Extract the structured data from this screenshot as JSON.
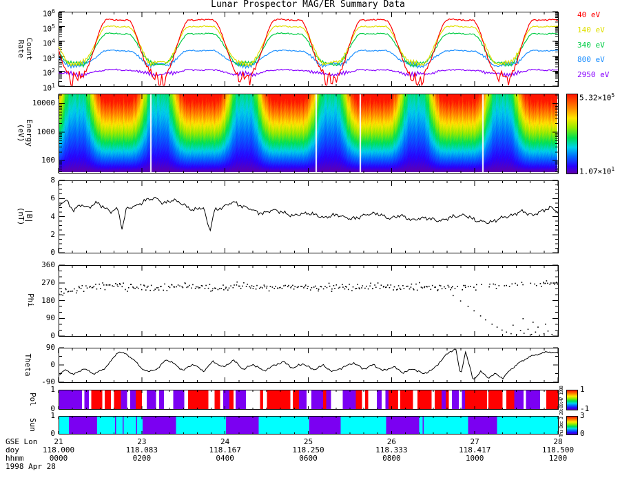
{
  "title": "Lunar Prospector MAG/ER Summary Data",
  "timestamp_side": "Thu Dec 3 20:09:47 1998",
  "x_axis": {
    "row_labels": [
      "GSE Lon",
      "doy",
      "hhmm"
    ],
    "date_label": "1998 Apr 28",
    "gse_lon": [
      "21",
      "23",
      "24",
      "25",
      "26",
      "27",
      "28"
    ],
    "doy": [
      "118.000",
      "118.083",
      "118.167",
      "118.250",
      "118.333",
      "118.417",
      "118.500"
    ],
    "hhmm": [
      "0000",
      "0200",
      "0400",
      "0600",
      "0800",
      "1000",
      "1200"
    ]
  },
  "orbit": {
    "valley_centers": [
      0.035,
      0.2,
      0.372,
      0.545,
      0.717,
      0.89
    ],
    "valley_halfwidth": 0.012,
    "transition": 0.05
  },
  "chart_data": {
    "count_rate": {
      "type": "line",
      "yscale": "log",
      "ylim_log": [
        1,
        6
      ],
      "ylabel_lines": [
        "Count",
        "Rate"
      ],
      "ytick_exponents": [
        "1",
        "2",
        "3",
        "4",
        "5",
        "6"
      ],
      "legend": [
        {
          "label": "40 eV",
          "color": "#ff0000"
        },
        {
          "label": "140 eV",
          "color": "#e0e000"
        },
        {
          "label": "340 eV",
          "color": "#00cc44"
        },
        {
          "label": "800 eV",
          "color": "#1e90ff"
        },
        {
          "label": "2950 eV",
          "color": "#8800ff"
        }
      ],
      "series": [
        {
          "label": "2950 eV",
          "color": "#8800ff",
          "plateau_log": 2.08,
          "valley_log": 1.8,
          "noise": 0.05,
          "spiky": false
        },
        {
          "label": "800 eV",
          "color": "#1e90ff",
          "plateau_log": 3.38,
          "valley_log": 2.42,
          "noise": 0.045,
          "spiky": false
        },
        {
          "label": "340 eV",
          "color": "#00cc44",
          "plateau_log": 4.52,
          "valley_log": 2.5,
          "noise": 0.05,
          "spiky": false
        },
        {
          "label": "140 eV",
          "color": "#e0e000",
          "plateau_log": 5.0,
          "valley_log": 2.55,
          "noise": 0.05,
          "spiky": false
        },
        {
          "label": "40 eV",
          "color": "#ff0000",
          "plateau_log": 5.45,
          "valley_log": 1.85,
          "noise": 0.055,
          "spiky": true
        }
      ]
    },
    "energy_spectrogram": {
      "type": "heatmap",
      "yscale": "log",
      "ylim_log": [
        1.57,
        4.35
      ],
      "ylabel_lines": [
        "Energy",
        "(eV)"
      ],
      "yticks": [
        {
          "label": "100",
          "log": 2
        },
        {
          "label": "1000",
          "log": 3
        },
        {
          "label": "10000",
          "log": 4
        }
      ],
      "valley_level": 0.38,
      "gap_fractions": [
        0.184,
        0.516,
        0.604,
        0.85
      ],
      "colorbar": {
        "top_mantissa": "5.32×10",
        "top_exp": "5",
        "bottom_mantissa": "1.07×10",
        "bottom_exp": "1"
      }
    },
    "b_field": {
      "type": "line",
      "ylabel_lines": [
        "|B|",
        "(nT)"
      ],
      "yticks": [
        0,
        2,
        4,
        6,
        8
      ],
      "ylim": [
        0,
        8
      ],
      "noise": 0.2,
      "anchors": [
        [
          0,
          5.2
        ],
        [
          0.015,
          5.8
        ],
        [
          0.03,
          4.7
        ],
        [
          0.045,
          5.3
        ],
        [
          0.06,
          5.0
        ],
        [
          0.075,
          5.5
        ],
        [
          0.09,
          5.1
        ],
        [
          0.105,
          4.5
        ],
        [
          0.118,
          4.9
        ],
        [
          0.128,
          2.6
        ],
        [
          0.135,
          4.8
        ],
        [
          0.155,
          5.2
        ],
        [
          0.175,
          5.8
        ],
        [
          0.195,
          6.1
        ],
        [
          0.21,
          5.4
        ],
        [
          0.23,
          5.9
        ],
        [
          0.25,
          5.3
        ],
        [
          0.27,
          4.7
        ],
        [
          0.29,
          5.0
        ],
        [
          0.303,
          2.4
        ],
        [
          0.312,
          4.6
        ],
        [
          0.33,
          5.1
        ],
        [
          0.35,
          5.6
        ],
        [
          0.37,
          5.1
        ],
        [
          0.39,
          4.7
        ],
        [
          0.41,
          4.3
        ],
        [
          0.43,
          4.8
        ],
        [
          0.45,
          4.4
        ],
        [
          0.47,
          4.1
        ],
        [
          0.5,
          4.4
        ],
        [
          0.53,
          3.9
        ],
        [
          0.56,
          4.2
        ],
        [
          0.585,
          3.7
        ],
        [
          0.61,
          4.1
        ],
        [
          0.635,
          4.4
        ],
        [
          0.66,
          3.8
        ],
        [
          0.685,
          4.1
        ],
        [
          0.71,
          3.6
        ],
        [
          0.735,
          3.9
        ],
        [
          0.76,
          3.5
        ],
        [
          0.785,
          3.9
        ],
        [
          0.81,
          4.2
        ],
        [
          0.835,
          3.6
        ],
        [
          0.86,
          3.3
        ],
        [
          0.885,
          3.8
        ],
        [
          0.91,
          4.2
        ],
        [
          0.93,
          4.6
        ],
        [
          0.95,
          4.1
        ],
        [
          0.97,
          4.7
        ],
        [
          0.985,
          5.0
        ],
        [
          1,
          4.5
        ]
      ]
    },
    "phi": {
      "type": "scatter",
      "ylabel": "Phi",
      "yticks": [
        0,
        90,
        180,
        270,
        360
      ],
      "ylim": [
        0,
        360
      ],
      "n_points": 340,
      "band_jitter": 15,
      "band_anchors": [
        [
          0,
          215
        ],
        [
          0.03,
          232
        ],
        [
          0.06,
          246
        ],
        [
          0.09,
          254
        ],
        [
          0.12,
          262
        ],
        [
          0.16,
          248
        ],
        [
          0.2,
          240
        ],
        [
          0.24,
          254
        ],
        [
          0.28,
          246
        ],
        [
          0.32,
          240
        ],
        [
          0.36,
          256
        ],
        [
          0.4,
          248
        ],
        [
          0.44,
          242
        ],
        [
          0.48,
          250
        ],
        [
          0.52,
          244
        ],
        [
          0.56,
          252
        ],
        [
          0.6,
          246
        ],
        [
          0.64,
          250
        ],
        [
          0.68,
          244
        ],
        [
          0.72,
          252
        ],
        [
          0.76,
          248
        ],
        [
          0.8,
          250
        ],
        [
          0.84,
          248
        ],
        [
          0.88,
          256
        ],
        [
          0.92,
          262
        ],
        [
          0.96,
          268
        ],
        [
          1,
          272
        ]
      ],
      "tail_points": [
        [
          0.79,
          205
        ],
        [
          0.805,
          178
        ],
        [
          0.82,
          150
        ],
        [
          0.832,
          128
        ],
        [
          0.845,
          102
        ],
        [
          0.855,
          82
        ],
        [
          0.868,
          60
        ],
        [
          0.878,
          45
        ],
        [
          0.888,
          30
        ],
        [
          0.897,
          20
        ],
        [
          0.906,
          12
        ],
        [
          0.917,
          6
        ],
        [
          0.925,
          28
        ],
        [
          0.932,
          14
        ],
        [
          0.94,
          34
        ],
        [
          0.947,
          8
        ],
        [
          0.955,
          20
        ],
        [
          0.963,
          4
        ],
        [
          0.972,
          12
        ],
        [
          0.98,
          25
        ],
        [
          0.988,
          8
        ],
        [
          0.93,
          88
        ],
        [
          0.95,
          70
        ],
        [
          0.91,
          55
        ],
        [
          0.96,
          45
        ],
        [
          0.975,
          60
        ]
      ]
    },
    "theta": {
      "type": "line",
      "ylabel": "Theta",
      "yticks": [
        -90,
        0,
        90
      ],
      "ylim": [
        -90,
        90
      ],
      "noise": 9,
      "anchors": [
        [
          0,
          -55
        ],
        [
          0.015,
          -25
        ],
        [
          0.03,
          -50
        ],
        [
          0.05,
          -20
        ],
        [
          0.07,
          -45
        ],
        [
          0.09,
          -25
        ],
        [
          0.105,
          20
        ],
        [
          0.12,
          72
        ],
        [
          0.135,
          55
        ],
        [
          0.15,
          30
        ],
        [
          0.165,
          -15
        ],
        [
          0.18,
          -38
        ],
        [
          0.2,
          -15
        ],
        [
          0.215,
          28
        ],
        [
          0.23,
          8
        ],
        [
          0.25,
          -28
        ],
        [
          0.27,
          4
        ],
        [
          0.29,
          -32
        ],
        [
          0.31,
          18
        ],
        [
          0.33,
          -12
        ],
        [
          0.35,
          24
        ],
        [
          0.37,
          -22
        ],
        [
          0.39,
          2
        ],
        [
          0.41,
          -30
        ],
        [
          0.43,
          -6
        ],
        [
          0.45,
          18
        ],
        [
          0.47,
          -18
        ],
        [
          0.49,
          8
        ],
        [
          0.51,
          -26
        ],
        [
          0.53,
          -2
        ],
        [
          0.55,
          -36
        ],
        [
          0.57,
          -12
        ],
        [
          0.59,
          12
        ],
        [
          0.61,
          -22
        ],
        [
          0.63,
          2
        ],
        [
          0.65,
          -32
        ],
        [
          0.67,
          -8
        ],
        [
          0.69,
          -42
        ],
        [
          0.71,
          -18
        ],
        [
          0.73,
          -48
        ],
        [
          0.75,
          -22
        ],
        [
          0.765,
          20
        ],
        [
          0.78,
          62
        ],
        [
          0.795,
          88
        ],
        [
          0.805,
          -55
        ],
        [
          0.815,
          70
        ],
        [
          0.83,
          -78
        ],
        [
          0.845,
          -35
        ],
        [
          0.86,
          -68
        ],
        [
          0.875,
          -45
        ],
        [
          0.89,
          -70
        ],
        [
          0.905,
          -25
        ],
        [
          0.92,
          8
        ],
        [
          0.94,
          38
        ],
        [
          0.96,
          58
        ],
        [
          0.98,
          68
        ],
        [
          1,
          62
        ]
      ]
    },
    "pol": {
      "type": "bar",
      "ylabel": "Pol",
      "yticks": [
        "0",
        "1"
      ],
      "colorbar_labels": [
        "1",
        "-1"
      ],
      "colors": {
        "r": "#ff0000",
        "p": "#7b00f2",
        "w": "#ffffff"
      },
      "segments": [
        [
          "p",
          30
        ],
        [
          "w",
          3
        ],
        [
          "p",
          6
        ],
        [
          "w",
          3
        ],
        [
          "r",
          14
        ],
        [
          "w",
          3
        ],
        [
          "r",
          8
        ],
        [
          "w",
          4
        ],
        [
          "r",
          9
        ],
        [
          "p",
          8
        ],
        [
          "w",
          4
        ],
        [
          "p",
          7
        ],
        [
          "r",
          8
        ],
        [
          "w",
          6
        ],
        [
          "p",
          12
        ],
        [
          "w",
          4
        ],
        [
          "p",
          6
        ],
        [
          "w",
          12
        ],
        [
          "p",
          14
        ],
        [
          "w",
          5
        ],
        [
          "r",
          26
        ],
        [
          "w",
          8
        ],
        [
          "r",
          7
        ],
        [
          "w",
          4
        ],
        [
          "p",
          8
        ],
        [
          "r",
          5
        ],
        [
          "w",
          3
        ],
        [
          "p",
          13
        ],
        [
          "w",
          18
        ],
        [
          "r",
          4
        ],
        [
          "w",
          5
        ],
        [
          "r",
          30
        ],
        [
          "w",
          3
        ],
        [
          "r",
          8
        ],
        [
          "p",
          10
        ],
        [
          "w",
          6
        ],
        [
          "p",
          15
        ],
        [
          "r",
          4
        ],
        [
          "p",
          6
        ],
        [
          "w",
          15
        ],
        [
          "p",
          17
        ],
        [
          "r",
          8
        ],
        [
          "w",
          4
        ],
        [
          "r",
          4
        ],
        [
          "w",
          11
        ],
        [
          "p",
          6
        ],
        [
          "w",
          5
        ],
        [
          "p",
          4
        ],
        [
          "r",
          12
        ],
        [
          "w",
          3
        ],
        [
          "r",
          16
        ],
        [
          "w",
          6
        ],
        [
          "r",
          18
        ],
        [
          "w",
          4
        ],
        [
          "r",
          9
        ],
        [
          "p",
          5
        ],
        [
          "r",
          4
        ],
        [
          "w",
          4
        ],
        [
          "p",
          9
        ],
        [
          "w",
          4
        ],
        [
          "p",
          4
        ],
        [
          "r",
          28
        ],
        [
          "w",
          2
        ],
        [
          "r",
          18
        ],
        [
          "w",
          5
        ],
        [
          "r",
          10
        ],
        [
          "p",
          12
        ],
        [
          "w",
          3
        ],
        [
          "p",
          18
        ],
        [
          "w",
          8
        ],
        [
          "r",
          15
        ]
      ]
    },
    "sun": {
      "type": "bar",
      "ylabel": "Sun",
      "yticks": [
        "0",
        "1"
      ],
      "colorbar_labels": [
        "3",
        "0"
      ],
      "colors": {
        "c": "#00ffff",
        "p": "#7b00f2"
      },
      "segments": [
        [
          "c",
          21
        ],
        [
          "p",
          56
        ],
        [
          "c",
          36
        ],
        [
          "p",
          2
        ],
        [
          "c",
          13
        ],
        [
          "p",
          2
        ],
        [
          "c",
          25
        ],
        [
          "p",
          2
        ],
        [
          "c",
          11
        ],
        [
          "p",
          67
        ],
        [
          "c",
          100
        ],
        [
          "p",
          66
        ],
        [
          "c",
          101
        ],
        [
          "p",
          63
        ],
        [
          "c",
          91
        ],
        [
          "p",
          66
        ],
        [
          "c",
          7
        ],
        [
          "p",
          2
        ],
        [
          "c",
          89
        ],
        [
          "p",
          58
        ],
        [
          "c",
          122
        ]
      ]
    }
  }
}
